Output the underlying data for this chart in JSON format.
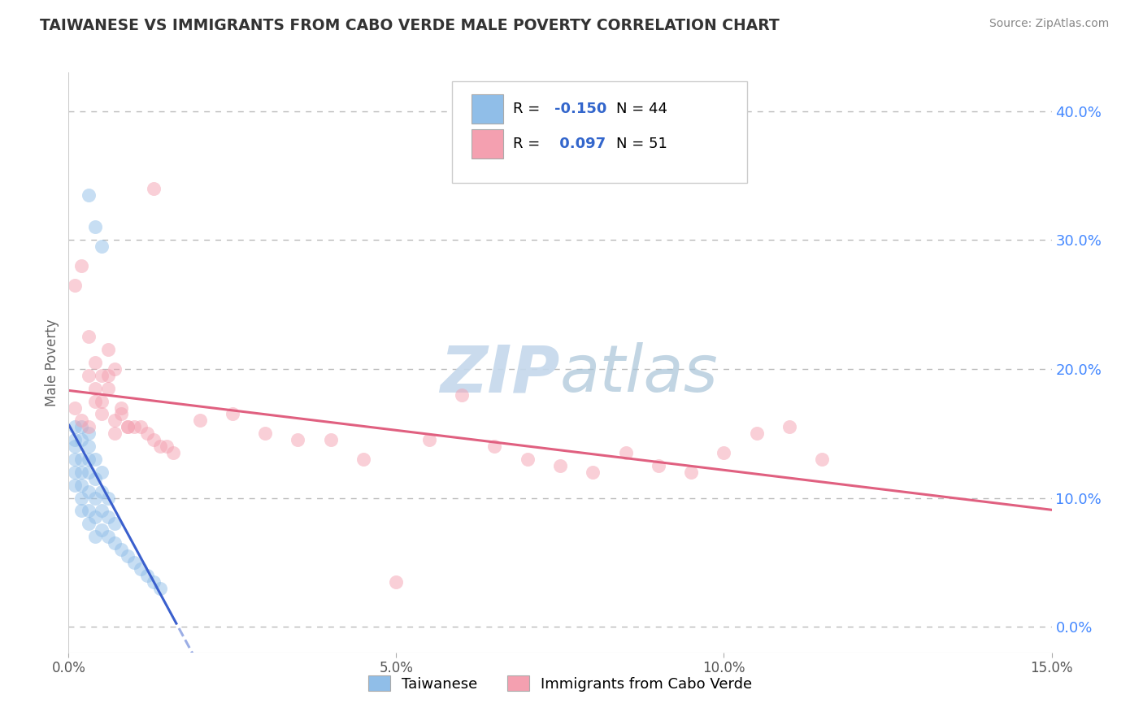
{
  "title": "TAIWANESE VS IMMIGRANTS FROM CABO VERDE MALE POVERTY CORRELATION CHART",
  "source": "Source: ZipAtlas.com",
  "ylabel": "Male Poverty",
  "xlim": [
    0.0,
    0.15
  ],
  "ylim": [
    -0.02,
    0.43
  ],
  "plot_ylim": [
    0.0,
    0.42
  ],
  "right_yticks": [
    0.0,
    0.1,
    0.2,
    0.3,
    0.4
  ],
  "right_yticklabels": [
    "0.0%",
    "10.0%",
    "20.0%",
    "30.0%",
    "40.0%"
  ],
  "xticks": [
    0.0,
    0.05,
    0.1,
    0.15
  ],
  "xticklabels": [
    "0.0%",
    "5.0%",
    "10.0%",
    "15.0%"
  ],
  "group1_color": "#90BEE8",
  "group2_color": "#F4A0B0",
  "group1_line_color": "#3A5FCD",
  "group2_line_color": "#E06080",
  "group1_label": "Taiwanese",
  "group2_label": "Immigrants from Cabo Verde",
  "group1_R": -0.15,
  "group1_N": 44,
  "group2_R": 0.097,
  "group2_N": 51,
  "legend_R_color": "#3366CC",
  "watermark": "ZIPatlas",
  "watermark_color": "#C8D8E8",
  "background_color": "#FFFFFF",
  "grid_color": "#BBBBBB",
  "title_color": "#333333",
  "dot_size": 150,
  "dot_alpha": 0.5,
  "line_width": 2.2,
  "group1_x": [
    0.003,
    0.004,
    0.005,
    0.001,
    0.001,
    0.001,
    0.001,
    0.001,
    0.001,
    0.002,
    0.002,
    0.002,
    0.002,
    0.002,
    0.002,
    0.002,
    0.003,
    0.003,
    0.003,
    0.003,
    0.003,
    0.003,
    0.003,
    0.004,
    0.004,
    0.004,
    0.004,
    0.004,
    0.005,
    0.005,
    0.005,
    0.005,
    0.006,
    0.006,
    0.006,
    0.007,
    0.007,
    0.008,
    0.009,
    0.01,
    0.011,
    0.012,
    0.013,
    0.014
  ],
  "group1_y": [
    0.335,
    0.31,
    0.295,
    0.155,
    0.145,
    0.14,
    0.13,
    0.12,
    0.11,
    0.155,
    0.145,
    0.13,
    0.12,
    0.11,
    0.1,
    0.09,
    0.15,
    0.14,
    0.13,
    0.12,
    0.105,
    0.09,
    0.08,
    0.13,
    0.115,
    0.1,
    0.085,
    0.07,
    0.12,
    0.105,
    0.09,
    0.075,
    0.1,
    0.085,
    0.07,
    0.08,
    0.065,
    0.06,
    0.055,
    0.05,
    0.045,
    0.04,
    0.035,
    0.03
  ],
  "group2_x": [
    0.013,
    0.001,
    0.002,
    0.003,
    0.004,
    0.005,
    0.006,
    0.007,
    0.001,
    0.002,
    0.003,
    0.004,
    0.005,
    0.006,
    0.007,
    0.008,
    0.009,
    0.01,
    0.011,
    0.012,
    0.013,
    0.014,
    0.015,
    0.016,
    0.02,
    0.025,
    0.03,
    0.035,
    0.04,
    0.045,
    0.05,
    0.055,
    0.06,
    0.065,
    0.07,
    0.075,
    0.08,
    0.085,
    0.09,
    0.095,
    0.1,
    0.105,
    0.11,
    0.115,
    0.003,
    0.004,
    0.005,
    0.006,
    0.007,
    0.008,
    0.009
  ],
  "group2_y": [
    0.34,
    0.265,
    0.28,
    0.225,
    0.205,
    0.195,
    0.215,
    0.2,
    0.17,
    0.16,
    0.155,
    0.175,
    0.165,
    0.185,
    0.16,
    0.165,
    0.155,
    0.155,
    0.155,
    0.15,
    0.145,
    0.14,
    0.14,
    0.135,
    0.16,
    0.165,
    0.15,
    0.145,
    0.145,
    0.13,
    0.035,
    0.145,
    0.18,
    0.14,
    0.13,
    0.125,
    0.12,
    0.135,
    0.125,
    0.12,
    0.135,
    0.15,
    0.155,
    0.13,
    0.195,
    0.185,
    0.175,
    0.195,
    0.15,
    0.17,
    0.155
  ]
}
